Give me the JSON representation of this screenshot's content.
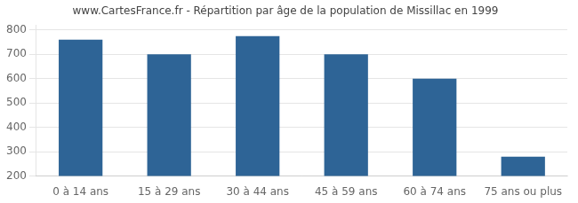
{
  "chart_data": {
    "type": "bar",
    "title": "www.CartesFrance.fr - Répartition par âge de la population de Missillac en 1999",
    "categories": [
      "0 à 14 ans",
      "15 à 29 ans",
      "30 à 44 ans",
      "45 à 59 ans",
      "60 à 74 ans",
      "75 ans ou plus"
    ],
    "values": [
      760,
      700,
      775,
      700,
      600,
      280
    ],
    "color": "#2e6496",
    "ylim": [
      200,
      820
    ],
    "yticks": [
      200,
      300,
      400,
      500,
      600,
      700,
      800
    ],
    "grid": true
  }
}
